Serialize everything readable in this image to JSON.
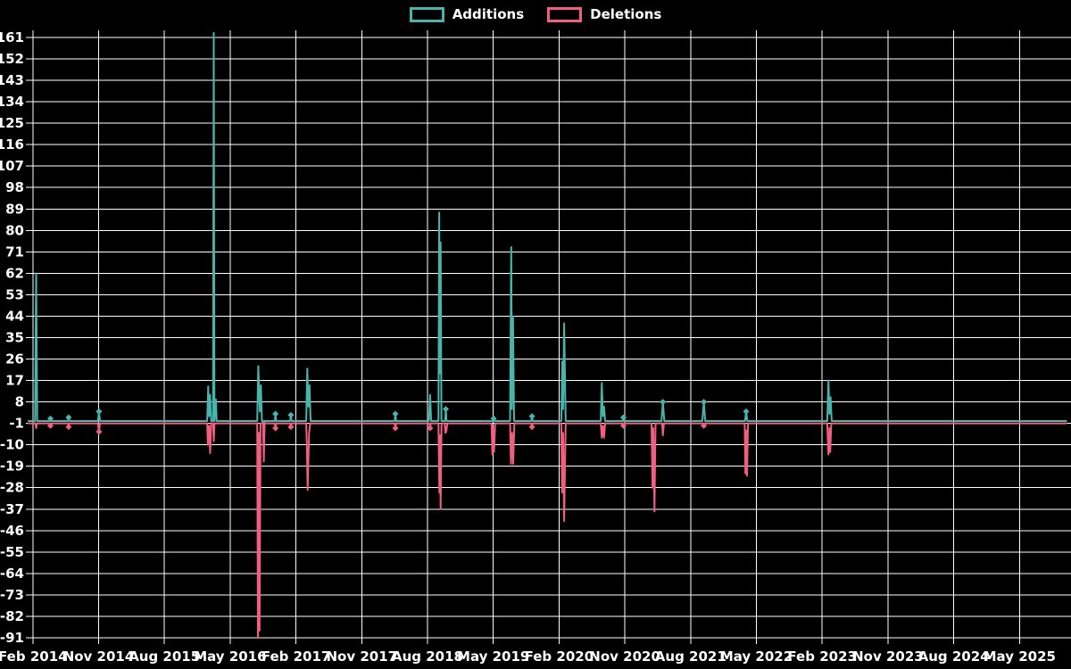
{
  "legend": [
    {
      "label": "Additions",
      "color": "#48b5ad"
    },
    {
      "label": "Deletions",
      "color": "#f25e7e"
    }
  ],
  "axes": {
    "y_ticks": [
      161,
      152,
      143,
      134,
      125,
      116,
      107,
      98,
      89,
      80,
      71,
      62,
      53,
      44,
      35,
      26,
      17,
      8,
      -1,
      -10,
      -19,
      -28,
      -37,
      -46,
      -55,
      -64,
      -73,
      -82,
      -91
    ],
    "x_ticks": [
      "Feb 2014",
      "Nov 2014",
      "Aug 2015",
      "May 2016",
      "Feb 2017",
      "Nov 2017",
      "Aug 2018",
      "May 2019",
      "Feb 2020",
      "Nov 2020",
      "Aug 2021",
      "May 2022",
      "Feb 2023",
      "Nov 2023",
      "Aug 2024",
      "May 2025"
    ]
  },
  "chart_data": {
    "type": "line",
    "title": "",
    "xlabel": "",
    "ylabel": "",
    "x_unit": "months since Feb 2014 (x ticks every 9 months)",
    "ylim": [
      -91,
      161
    ],
    "grid": true,
    "background": "#000000",
    "grid_color": "#ffffff",
    "legend_position": "top-center",
    "series": [
      {
        "name": "Additions",
        "color": "#48b5ad",
        "baseline": 0,
        "points": [
          [
            -0.6,
            0
          ],
          [
            0.3,
            0
          ],
          [
            0.45,
            62
          ],
          [
            0.6,
            0
          ],
          [
            2.3,
            0
          ],
          [
            2.4,
            1,
            1
          ],
          [
            2.5,
            0
          ],
          [
            4.8,
            0
          ],
          [
            4.9,
            1.5,
            1
          ],
          [
            5.0,
            0
          ],
          [
            8.9,
            0
          ],
          [
            9.05,
            4,
            1
          ],
          [
            9.2,
            0
          ],
          [
            23.85,
            0
          ],
          [
            24.0,
            14.5
          ],
          [
            24.1,
            2
          ],
          [
            24.25,
            11
          ],
          [
            24.4,
            0
          ],
          [
            24.65,
            0
          ],
          [
            24.75,
            163
          ],
          [
            24.85,
            0
          ],
          [
            25.05,
            9
          ],
          [
            25.15,
            0
          ],
          [
            30.7,
            0
          ],
          [
            30.85,
            23
          ],
          [
            31.05,
            4
          ],
          [
            31.2,
            15
          ],
          [
            31.35,
            0
          ],
          [
            31.5,
            0
          ],
          [
            31.6,
            -13
          ],
          [
            31.7,
            0
          ],
          [
            33.1,
            0
          ],
          [
            33.2,
            3,
            1
          ],
          [
            33.3,
            0
          ],
          [
            35.2,
            0
          ],
          [
            35.3,
            2.5,
            1
          ],
          [
            35.4,
            0
          ],
          [
            37.4,
            0
          ],
          [
            37.55,
            22
          ],
          [
            37.7,
            6
          ],
          [
            37.85,
            15
          ],
          [
            38.0,
            0
          ],
          [
            49.5,
            0
          ],
          [
            49.6,
            3,
            1
          ],
          [
            49.7,
            0
          ],
          [
            54.2,
            0
          ],
          [
            54.35,
            11
          ],
          [
            54.5,
            0
          ],
          [
            55.5,
            0
          ],
          [
            55.6,
            87.5
          ],
          [
            55.7,
            20
          ],
          [
            55.8,
            75
          ],
          [
            55.9,
            0
          ],
          [
            56.4,
            0
          ],
          [
            56.5,
            5,
            1
          ],
          [
            56.6,
            0
          ],
          [
            62.95,
            0
          ],
          [
            63.05,
            1,
            1
          ],
          [
            63.15,
            0
          ],
          [
            65.3,
            0
          ],
          [
            65.45,
            73
          ],
          [
            65.55,
            5
          ],
          [
            65.7,
            44
          ],
          [
            65.85,
            0
          ],
          [
            68.2,
            0
          ],
          [
            68.3,
            2,
            1
          ],
          [
            68.4,
            0
          ],
          [
            72.3,
            0
          ],
          [
            72.45,
            25
          ],
          [
            72.55,
            5
          ],
          [
            72.7,
            41
          ],
          [
            72.9,
            0
          ],
          [
            77.7,
            0
          ],
          [
            77.85,
            16
          ],
          [
            78.0,
            2
          ],
          [
            78.15,
            6
          ],
          [
            78.3,
            0
          ],
          [
            80.7,
            0
          ],
          [
            80.8,
            1.5,
            1
          ],
          [
            80.9,
            0
          ],
          [
            86.0,
            0
          ],
          [
            86.2,
            8,
            1
          ],
          [
            86.4,
            0
          ],
          [
            91.6,
            0
          ],
          [
            91.8,
            8,
            1
          ],
          [
            92.0,
            0
          ],
          [
            97.45,
            0
          ],
          [
            97.6,
            4,
            1
          ],
          [
            97.75,
            0
          ],
          [
            108.7,
            0
          ],
          [
            108.85,
            17
          ],
          [
            109.0,
            3
          ],
          [
            109.15,
            10
          ],
          [
            109.3,
            0
          ],
          [
            141.4,
            0
          ]
        ]
      },
      {
        "name": "Deletions",
        "color": "#f25e7e",
        "baseline": -1,
        "points": [
          [
            -0.6,
            -1
          ],
          [
            0.35,
            -1
          ],
          [
            0.45,
            -3
          ],
          [
            0.55,
            -1
          ],
          [
            2.3,
            -1
          ],
          [
            2.4,
            -2,
            1
          ],
          [
            2.5,
            -1
          ],
          [
            4.8,
            -1
          ],
          [
            4.9,
            -2.5,
            1
          ],
          [
            5.0,
            -1
          ],
          [
            8.9,
            -1
          ],
          [
            9.05,
            -4.5,
            1
          ],
          [
            9.2,
            -1
          ],
          [
            23.85,
            -1
          ],
          [
            23.95,
            -10
          ],
          [
            24.1,
            -2
          ],
          [
            24.25,
            -13.5
          ],
          [
            24.4,
            -1
          ],
          [
            24.65,
            -1
          ],
          [
            24.75,
            -8.5
          ],
          [
            24.85,
            -1
          ],
          [
            30.7,
            -1
          ],
          [
            30.8,
            -91
          ],
          [
            30.92,
            -5
          ],
          [
            31.02,
            -88
          ],
          [
            31.15,
            -1
          ],
          [
            31.5,
            -1
          ],
          [
            31.6,
            -17
          ],
          [
            31.7,
            -1
          ],
          [
            33.1,
            -1
          ],
          [
            33.2,
            -3,
            1
          ],
          [
            33.3,
            -1
          ],
          [
            35.2,
            -1
          ],
          [
            35.3,
            -2.5,
            1
          ],
          [
            35.4,
            -1
          ],
          [
            37.4,
            -1
          ],
          [
            37.5,
            -12
          ],
          [
            37.6,
            -29
          ],
          [
            37.8,
            -5
          ],
          [
            37.95,
            -1
          ],
          [
            49.5,
            -1
          ],
          [
            49.6,
            -3,
            1
          ],
          [
            49.7,
            -1
          ],
          [
            54.25,
            -1
          ],
          [
            54.35,
            -3,
            1
          ],
          [
            54.45,
            -1
          ],
          [
            55.5,
            -1
          ],
          [
            55.62,
            -30
          ],
          [
            55.72,
            -6
          ],
          [
            55.8,
            -37
          ],
          [
            55.92,
            -1
          ],
          [
            56.35,
            -1
          ],
          [
            56.45,
            -5
          ],
          [
            56.6,
            -4
          ],
          [
            56.7,
            -1
          ],
          [
            62.75,
            -1
          ],
          [
            62.88,
            -14
          ],
          [
            63.0,
            -3
          ],
          [
            63.1,
            -13
          ],
          [
            63.25,
            -1
          ],
          [
            65.3,
            -1
          ],
          [
            65.42,
            -18
          ],
          [
            65.58,
            -5
          ],
          [
            65.72,
            -18
          ],
          [
            65.88,
            -1
          ],
          [
            68.2,
            -1
          ],
          [
            68.3,
            -2.5,
            1
          ],
          [
            68.4,
            -1
          ],
          [
            72.3,
            -1
          ],
          [
            72.42,
            -30
          ],
          [
            72.55,
            -5
          ],
          [
            72.7,
            -42
          ],
          [
            72.9,
            -1
          ],
          [
            77.7,
            -1
          ],
          [
            77.85,
            -7
          ],
          [
            78.0,
            -2
          ],
          [
            78.15,
            -7
          ],
          [
            78.3,
            -1
          ],
          [
            80.7,
            -1
          ],
          [
            80.8,
            -2,
            1
          ],
          [
            80.9,
            -1
          ],
          [
            84.65,
            -1
          ],
          [
            84.78,
            -28
          ],
          [
            84.9,
            -3
          ],
          [
            85.05,
            -38
          ],
          [
            85.2,
            -1
          ],
          [
            86.1,
            -1
          ],
          [
            86.2,
            -6
          ],
          [
            86.35,
            -1
          ],
          [
            91.7,
            -1
          ],
          [
            91.8,
            -2,
            1
          ],
          [
            91.9,
            -1
          ],
          [
            97.4,
            -1
          ],
          [
            97.5,
            -22
          ],
          [
            97.62,
            -4
          ],
          [
            97.72,
            -23
          ],
          [
            97.85,
            -1
          ],
          [
            108.7,
            -1
          ],
          [
            108.85,
            -14
          ],
          [
            109.0,
            -3
          ],
          [
            109.1,
            -13
          ],
          [
            109.25,
            -1
          ],
          [
            141.4,
            -1
          ]
        ]
      }
    ]
  }
}
